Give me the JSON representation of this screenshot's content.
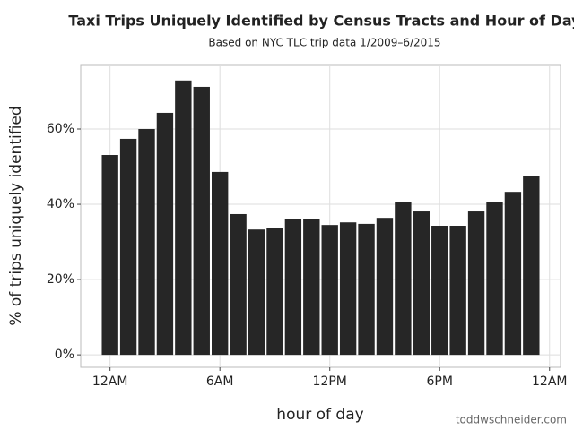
{
  "chart_data": {
    "type": "bar",
    "title": "Taxi Trips Uniquely Identified by Census Tracts and Hour of Day",
    "subtitle": "Based on NYC TLC trip data 1/2009–6/2015",
    "x_label": "hour of day",
    "y_label": "% of trips uniquely identified",
    "caption": "toddwschneider.com",
    "x": [
      0,
      1,
      2,
      3,
      4,
      5,
      6,
      7,
      8,
      9,
      10,
      11,
      12,
      13,
      14,
      15,
      16,
      17,
      18,
      19,
      20,
      21,
      22,
      23
    ],
    "values": [
      53.1,
      57.4,
      60,
      64.3,
      72.9,
      71.2,
      48.6,
      37.4,
      33.3,
      33.6,
      36.2,
      36,
      34.5,
      35.2,
      34.8,
      36.4,
      40.5,
      38.1,
      34.3,
      34.3,
      38.1,
      40.7,
      43.3,
      47.6
    ],
    "color": "#262626",
    "xlim": [
      -1.6,
      24.6
    ],
    "ylim": [
      -3.3,
      76.9
    ],
    "xticks": [
      {
        "value": 0,
        "label": "12AM"
      },
      {
        "value": 6,
        "label": "6AM"
      },
      {
        "value": 12,
        "label": "12PM"
      },
      {
        "value": 18,
        "label": "6PM"
      },
      {
        "value": 24,
        "label": "12AM"
      }
    ],
    "yticks": [
      {
        "value": 0,
        "label": "0%"
      },
      {
        "value": 20,
        "label": "20%"
      },
      {
        "value": 40,
        "label": "40%"
      },
      {
        "value": 60,
        "label": "60%"
      }
    ],
    "grid": true
  }
}
